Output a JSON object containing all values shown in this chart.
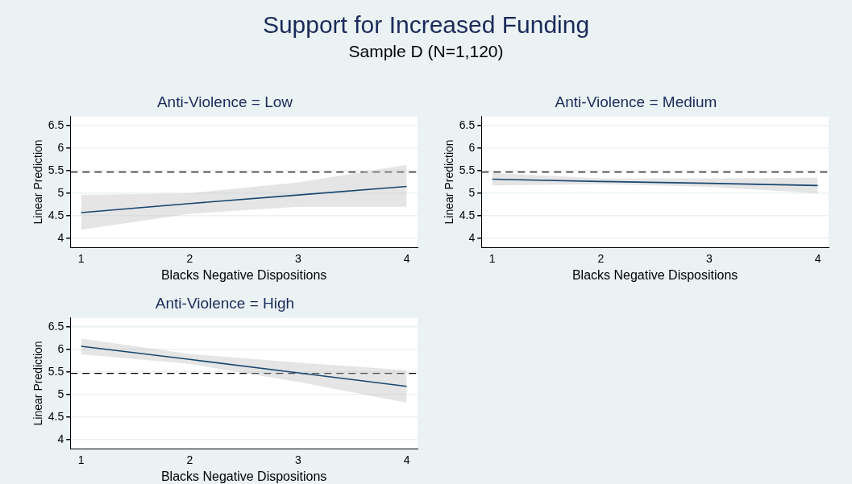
{
  "chart_data": [
    {
      "type": "line",
      "title": "Anti-Violence = Low",
      "xlabel": "Blacks Negative Dispositions",
      "ylabel": "Linear Prediction",
      "annotations": [
        "Support for Increased Funding",
        "Sample D (N=1,120)"
      ],
      "x": [
        1,
        2,
        3,
        4
      ],
      "xlim": [
        0.9,
        4.1
      ],
      "xticks": [
        1,
        2,
        3,
        4
      ],
      "ylim": [
        3.8,
        6.7
      ],
      "yticks": [
        4,
        4.5,
        5,
        5.5,
        6,
        6.5
      ],
      "grid": "y",
      "legend": false,
      "marker": "none",
      "line_style": "solid",
      "series": [
        {
          "color": "#1a476f",
          "values": [
            4.57,
            4.77,
            4.96,
            5.15
          ],
          "lower": [
            4.19,
            4.54,
            4.7,
            4.7
          ],
          "upper": [
            4.96,
            5.0,
            5.24,
            5.63
          ]
        }
      ],
      "ref_lines": [
        {
          "axis": "y",
          "value": 5.47,
          "color": "#000000",
          "line_style": "dashed"
        }
      ]
    },
    {
      "type": "line",
      "title": "Anti-Violence = Medium",
      "xlabel": "Blacks Negative Dispositions",
      "ylabel": "Linear Prediction",
      "x": [
        1,
        2,
        3,
        4
      ],
      "xlim": [
        0.9,
        4.1
      ],
      "xticks": [
        1,
        2,
        3,
        4
      ],
      "ylim": [
        3.8,
        6.7
      ],
      "yticks": [
        4,
        4.5,
        5,
        5.5,
        6,
        6.5
      ],
      "grid": "y",
      "legend": false,
      "marker": "none",
      "line_style": "solid",
      "series": [
        {
          "color": "#1a476f",
          "values": [
            5.31,
            5.26,
            5.22,
            5.17
          ],
          "lower": [
            5.17,
            5.2,
            5.14,
            5.0
          ],
          "upper": [
            5.45,
            5.33,
            5.33,
            5.34
          ]
        }
      ],
      "ref_lines": [
        {
          "axis": "y",
          "value": 5.47,
          "color": "#000000",
          "line_style": "dashed"
        }
      ]
    },
    {
      "type": "line",
      "title": "Anti-Violence = High",
      "xlabel": "Blacks Negative Dispositions",
      "ylabel": "Linear Prediction",
      "x": [
        1,
        2,
        3,
        4
      ],
      "xlim": [
        0.9,
        4.1
      ],
      "xticks": [
        1,
        2,
        3,
        4
      ],
      "ylim": [
        3.8,
        6.7
      ],
      "yticks": [
        4,
        4.5,
        5,
        5.5,
        6,
        6.5
      ],
      "grid": "y",
      "legend": false,
      "marker": "none",
      "line_style": "solid",
      "series": [
        {
          "color": "#1a476f",
          "values": [
            6.07,
            5.78,
            5.48,
            5.18
          ],
          "lower": [
            5.89,
            5.68,
            5.28,
            4.82
          ],
          "upper": [
            6.24,
            5.9,
            5.71,
            5.54
          ]
        }
      ],
      "ref_lines": [
        {
          "axis": "y",
          "value": 5.47,
          "color": "#000000",
          "line_style": "dashed"
        }
      ]
    }
  ]
}
